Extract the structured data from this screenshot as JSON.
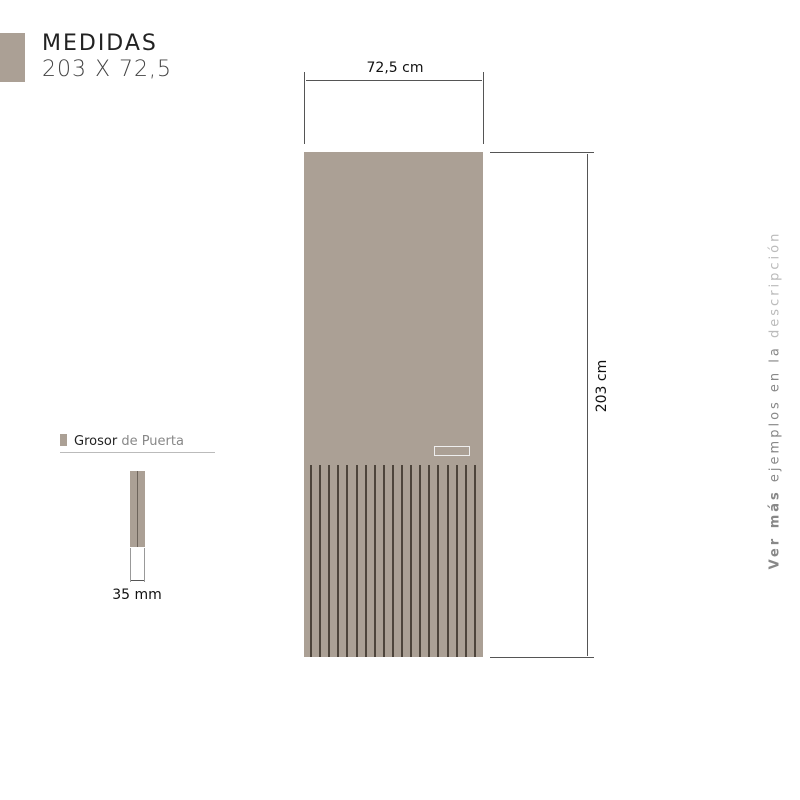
{
  "header": {
    "title": "MEDIDAS",
    "dimensions": "203 X 72,5",
    "swatch_color": "#aba095"
  },
  "door": {
    "width_label": "72,5 cm",
    "height_label": "203 cm",
    "color": "#aba095",
    "groove_color": "#4d443b",
    "groove_count": 19
  },
  "thickness": {
    "label_bold": "Grosor",
    "label_light": "de Puerta",
    "value_label": "35 mm"
  },
  "side_note": {
    "bold": "Ver más",
    "normal": "ejemplos en la",
    "light": "descripción"
  }
}
